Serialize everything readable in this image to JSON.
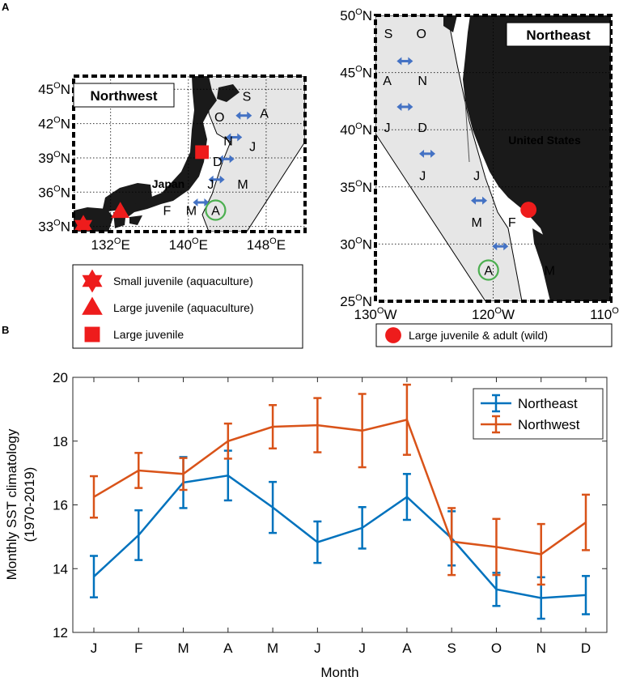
{
  "panel_a": {
    "label": "A",
    "northwest": {
      "title": "Northwest",
      "place_label": "Japan",
      "lat_ticks": [
        33,
        36,
        39,
        42,
        45
      ],
      "lon_ticks": [
        132,
        140,
        148
      ],
      "lat_unit": "N",
      "lon_unit": "E",
      "months": [
        {
          "t": "S",
          "lon": 146.0,
          "lat": 44.0
        },
        {
          "t": "A",
          "lon": 147.8,
          "lat": 42.5
        },
        {
          "t": "O",
          "lon": 143.2,
          "lat": 42.2
        },
        {
          "t": "N",
          "lon": 144.1,
          "lat": 40.1
        },
        {
          "t": "J",
          "lon": 146.6,
          "lat": 39.6
        },
        {
          "t": "D",
          "lon": 143.0,
          "lat": 38.3
        },
        {
          "t": "M",
          "lon": 145.6,
          "lat": 36.3
        },
        {
          "t": "J",
          "lon": 142.3,
          "lat": 36.3
        },
        {
          "t": "F",
          "lon": 137.8,
          "lat": 34.0
        },
        {
          "t": "M",
          "lon": 140.3,
          "lat": 34.0
        },
        {
          "t": "A",
          "lon": 142.8,
          "lat": 34.0,
          "circled": true
        }
      ],
      "arrows": [
        {
          "lon": 145.7,
          "lat": 42.7
        },
        {
          "lon": 144.7,
          "lat": 40.8
        },
        {
          "lon": 143.9,
          "lat": 38.9
        },
        {
          "lon": 142.9,
          "lat": 37.1
        },
        {
          "lon": 141.3,
          "lat": 35.1
        }
      ],
      "sites": [
        {
          "marker": "hexagram",
          "lon": 129.2,
          "lat": 33.1
        },
        {
          "marker": "triangle",
          "lon": 133.0,
          "lat": 34.3
        },
        {
          "marker": "square",
          "lon": 141.4,
          "lat": 39.5
        }
      ],
      "legend": [
        {
          "marker": "hexagram",
          "text": "Small juvenile (aquaculture)"
        },
        {
          "marker": "triangle",
          "text": "Large juvenile (aquaculture)"
        },
        {
          "marker": "square",
          "text": "Large juvenile"
        }
      ]
    },
    "northeast": {
      "title": "Northeast",
      "place_label": "United States",
      "lat_ticks": [
        25,
        30,
        35,
        40,
        45,
        50
      ],
      "lon_ticks": [
        130,
        120,
        110
      ],
      "lat_unit": "N",
      "lon_unit": "W",
      "months": [
        {
          "t": "S",
          "lon": 128.9,
          "lat": 48.0
        },
        {
          "t": "O",
          "lon": 126.1,
          "lat": 48.0
        },
        {
          "t": "A",
          "lon": 129.0,
          "lat": 43.9
        },
        {
          "t": "N",
          "lon": 126.0,
          "lat": 43.9
        },
        {
          "t": "J",
          "lon": 129.0,
          "lat": 39.8
        },
        {
          "t": "D",
          "lon": 126.0,
          "lat": 39.8
        },
        {
          "t": "J",
          "lon": 126.0,
          "lat": 35.6
        },
        {
          "t": "J",
          "lon": 121.4,
          "lat": 35.6
        },
        {
          "t": "M",
          "lon": 121.4,
          "lat": 31.5
        },
        {
          "t": "F",
          "lon": 118.4,
          "lat": 31.5
        },
        {
          "t": "A",
          "lon": 120.4,
          "lat": 27.3,
          "circled": true
        },
        {
          "t": "M",
          "lon": 115.2,
          "lat": 27.3
        }
      ],
      "arrows": [
        {
          "lon": 127.5,
          "lat": 46.0
        },
        {
          "lon": 127.5,
          "lat": 42.0
        },
        {
          "lon": 125.6,
          "lat": 37.9
        },
        {
          "lon": 121.2,
          "lat": 33.8
        },
        {
          "lon": 119.4,
          "lat": 29.8
        }
      ],
      "sites": [
        {
          "marker": "circle",
          "lon": 117.0,
          "lat": 33.0
        }
      ],
      "legend": [
        {
          "marker": "circle",
          "text": "Large juvenile & adult (wild)"
        }
      ]
    }
  },
  "panel_b": {
    "label": "B",
    "chart_data": {
      "type": "line",
      "categories": [
        "J",
        "F",
        "M",
        "A",
        "M",
        "J",
        "J",
        "A",
        "S",
        "O",
        "N",
        "D"
      ],
      "xlabel": "Month",
      "ylabel_line1": "Monthly SST climatology",
      "ylabel_line2": "(1970-2019)",
      "ylim": [
        12,
        20
      ],
      "yticks": [
        12,
        14,
        16,
        18,
        20
      ],
      "grid": false,
      "legend_position": "top-right",
      "series": [
        {
          "name": "Northeast",
          "color": "#0072BD",
          "values": [
            13.75,
            15.05,
            16.7,
            16.92,
            15.92,
            14.83,
            15.28,
            16.25,
            14.95,
            13.35,
            13.08,
            13.17
          ],
          "errors": [
            0.65,
            0.78,
            0.8,
            0.78,
            0.8,
            0.65,
            0.65,
            0.72,
            0.85,
            0.52,
            0.65,
            0.6
          ]
        },
        {
          "name": "Northwest",
          "color": "#D95319",
          "values": [
            16.25,
            17.08,
            16.97,
            18.0,
            18.45,
            18.5,
            18.33,
            18.67,
            14.85,
            14.68,
            14.45,
            15.45
          ],
          "errors": [
            0.65,
            0.55,
            0.5,
            0.55,
            0.68,
            0.85,
            1.15,
            1.1,
            1.05,
            0.88,
            0.95,
            0.87
          ]
        }
      ]
    }
  }
}
